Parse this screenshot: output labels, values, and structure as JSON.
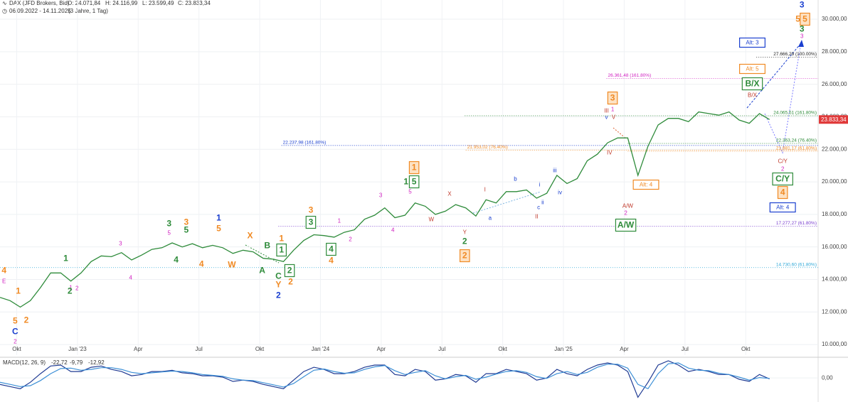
{
  "chart_data": [
    {
      "type": "line",
      "title": "DAX (JFD Brokers, Bid)",
      "ohlc": [
        "O: 24.071,84",
        "H: 24.116,99",
        "L: 23.599,49",
        "C: 23.833,34"
      ],
      "subtitle": "06.09.2022 - 14.11.2025",
      "period": "(3 Jahre, 1 Tag)",
      "series": [
        {
          "name": "DAX",
          "color": "#2e8b3a",
          "values": [
            12900,
            12700,
            12300,
            12700,
            13500,
            14400,
            14400,
            13900,
            14400,
            15100,
            15450,
            15400,
            15650,
            15200,
            15500,
            15850,
            15950,
            16250,
            16000,
            16200,
            15950,
            16100,
            15950,
            15600,
            15800,
            15700,
            15300,
            15250,
            15100,
            15800,
            16400,
            16750,
            16700,
            16600,
            16900,
            17050,
            17700,
            17950,
            18400,
            17800,
            17950,
            18700,
            18500,
            18000,
            18200,
            18600,
            18400,
            17900,
            18900,
            18700,
            19400,
            19400,
            19500,
            19000,
            19300,
            20400,
            19900,
            20200,
            21300,
            21700,
            22400,
            22700,
            22700,
            20400,
            22200,
            23500,
            23900,
            23900,
            23700,
            24300,
            24200,
            24100,
            24300,
            23800,
            23600,
            24200,
            23833.34
          ]
        }
      ],
      "xlim": [
        0,
        80.8
      ],
      "xticks": [
        {
          "value": 1.65,
          "label": "Okt"
        },
        {
          "value": 7.65,
          "label": "Jan '23"
        },
        {
          "value": 13.65,
          "label": "Apr"
        },
        {
          "value": 19.65,
          "label": "Jul"
        },
        {
          "value": 25.65,
          "label": "Okt"
        },
        {
          "value": 31.65,
          "label": "Jan '24"
        },
        {
          "value": 37.65,
          "label": "Apr"
        },
        {
          "value": 43.65,
          "label": "Jul"
        },
        {
          "value": 49.65,
          "label": "Okt"
        },
        {
          "value": 55.65,
          "label": "Jan '25"
        },
        {
          "value": 61.65,
          "label": "Apr"
        },
        {
          "value": 67.65,
          "label": "Jul"
        },
        {
          "value": 73.65,
          "label": "Okt"
        }
      ],
      "ylim": [
        9350,
        31180
      ],
      "yticks": [
        {
          "value": 10000,
          "label": "10.000,00"
        },
        {
          "value": 12000,
          "label": "12.000,00"
        },
        {
          "value": 14000,
          "label": "14.000,00"
        },
        {
          "value": 16000,
          "label": "16.000,00"
        },
        {
          "value": 18000,
          "label": "18.000,00"
        },
        {
          "value": 20000,
          "label": "20.000,00"
        },
        {
          "value": 22000,
          "label": "22.000,00"
        },
        {
          "value": 24000,
          "label": "24.000,00"
        },
        {
          "value": 26000,
          "label": "26.000,00"
        },
        {
          "value": 28000,
          "label": "28.000,00"
        },
        {
          "value": 30000,
          "label": "30.000,00"
        }
      ],
      "grid": true,
      "last_price": {
        "value": 23833.34,
        "label": "23.833,34",
        "color": "#e03a3a"
      },
      "levels": [
        {
          "value": 27666.29,
          "label": "27.666,29 (100.00%)",
          "color": "#222222",
          "start": 74.7,
          "label_at": "end"
        },
        {
          "value": 26361.48,
          "label": "26.361,48 (161.80%)",
          "color": "#d020c0",
          "start": 59.9,
          "label_at": "start"
        },
        {
          "value": 24065.51,
          "label": "24.065,51 (161.80%)",
          "color": "#2e8b3a",
          "start": 45.9,
          "label_at": "end"
        },
        {
          "value": 22237.98,
          "label": "22.237,98 (161.80%)",
          "color": "#1a3fcf",
          "start": 27.8,
          "label_at": "start"
        },
        {
          "value": 21953.02,
          "label": "21.953,02 (76.40%)",
          "color": "#f08a24",
          "start": 46.0,
          "label_at": "start"
        },
        {
          "value": 22363.24,
          "label": "22.363,24 (76.40%)",
          "color": "#2e8b3a",
          "start": 62.0,
          "label_at": "end"
        },
        {
          "value": 21881.17,
          "label": "21.881,17 (61.80%)",
          "color": "#f08a24",
          "start": 62.0,
          "label_at": "end"
        },
        {
          "value": 17277.27,
          "label": "17.277,27 (61.80%)",
          "color": "#7a3fcf",
          "start": 27.5,
          "label_at": "end"
        },
        {
          "value": 14730.6,
          "label": "14.730,60 (61.80%)",
          "color": "#2fa8d8",
          "start": 0,
          "label_at": "end"
        }
      ],
      "annotations": [
        {
          "text": "4",
          "x": 0.4,
          "y": 14546,
          "color": "#f08a24"
        },
        {
          "text": "E",
          "x": 0.4,
          "y": 13891,
          "color": "#d020c0"
        },
        {
          "text": "1",
          "x": 1.8,
          "y": 13279,
          "color": "#f08a24"
        },
        {
          "text": "2",
          "x": 2.6,
          "y": 11489,
          "color": "#f08a24"
        },
        {
          "text": "5",
          "x": 1.5,
          "y": 11446,
          "color": "#f08a24"
        },
        {
          "text": "C",
          "x": 1.5,
          "y": 10791,
          "color": "#1a3fcf"
        },
        {
          "text": "2",
          "x": 1.5,
          "y": 10180,
          "color": "#d020c0"
        },
        {
          "text": "1",
          "x": 6.5,
          "y": 15288,
          "color": "#2e8b3a"
        },
        {
          "text": "1",
          "x": 7.0,
          "y": 13498,
          "color": "#d020c0"
        },
        {
          "text": "2",
          "x": 6.9,
          "y": 13279,
          "color": "#2e8b3a"
        },
        {
          "text": "2",
          "x": 7.6,
          "y": 13454,
          "color": "#d020c0"
        },
        {
          "text": "3",
          "x": 11.9,
          "y": 16205,
          "color": "#d020c0"
        },
        {
          "text": "4",
          "x": 12.9,
          "y": 14109,
          "color": "#d020c0"
        },
        {
          "text": "3",
          "x": 16.7,
          "y": 17427,
          "color": "#2e8b3a"
        },
        {
          "text": "5",
          "x": 16.7,
          "y": 16860,
          "color": "#d020c0"
        },
        {
          "text": "3",
          "x": 18.4,
          "y": 17514,
          "color": "#f08a24"
        },
        {
          "text": "5",
          "x": 18.4,
          "y": 17034,
          "color": "#2e8b3a"
        },
        {
          "text": "4",
          "x": 17.4,
          "y": 15200,
          "color": "#2e8b3a"
        },
        {
          "text": "4",
          "x": 19.9,
          "y": 14938,
          "color": "#f08a24"
        },
        {
          "text": "1",
          "x": 21.6,
          "y": 17776,
          "color": "#1a3fcf"
        },
        {
          "text": "5",
          "x": 21.6,
          "y": 17121,
          "color": "#f08a24"
        },
        {
          "text": "X",
          "x": 24.7,
          "y": 16685,
          "color": "#f08a24"
        },
        {
          "text": "B",
          "x": 26.4,
          "y": 16074,
          "color": "#2e8b3a"
        },
        {
          "text": "W",
          "x": 22.9,
          "y": 14895,
          "color": "#f08a24"
        },
        {
          "text": "A",
          "x": 25.9,
          "y": 14546,
          "color": "#2e8b3a"
        },
        {
          "text": "C",
          "x": 27.5,
          "y": 14196,
          "color": "#2e8b3a"
        },
        {
          "text": "Y",
          "x": 27.5,
          "y": 13672,
          "color": "#f08a24"
        },
        {
          "text": "2",
          "x": 27.5,
          "y": 13017,
          "color": "#1a3fcf"
        },
        {
          "text": "1",
          "x": 27.8,
          "y": 16510,
          "color": "#f08a24"
        },
        {
          "text": "1",
          "x": 27.8,
          "y": 15812,
          "color": "#2e8b3a",
          "box": true
        },
        {
          "text": "2",
          "x": 28.6,
          "y": 14546,
          "color": "#2e8b3a",
          "box": true
        },
        {
          "text": "2",
          "x": 28.7,
          "y": 13847,
          "color": "#f08a24"
        },
        {
          "text": "3",
          "x": 30.7,
          "y": 18257,
          "color": "#f08a24"
        },
        {
          "text": "3",
          "x": 30.7,
          "y": 17514,
          "color": "#2e8b3a",
          "box": true
        },
        {
          "text": "1",
          "x": 33.5,
          "y": 17602,
          "color": "#d020c0"
        },
        {
          "text": "2",
          "x": 34.6,
          "y": 16467,
          "color": "#d020c0"
        },
        {
          "text": "4",
          "x": 32.7,
          "y": 15855,
          "color": "#2e8b3a",
          "box": true
        },
        {
          "text": "4",
          "x": 32.7,
          "y": 15157,
          "color": "#f08a24"
        },
        {
          "text": "3",
          "x": 37.6,
          "y": 19174,
          "color": "#d020c0"
        },
        {
          "text": "4",
          "x": 38.8,
          "y": 17034,
          "color": "#d020c0"
        },
        {
          "text": "1",
          "x": 40.1,
          "y": 20003,
          "color": "#2e8b3a"
        },
        {
          "text": "5",
          "x": 40.9,
          "y": 20003,
          "color": "#2e8b3a",
          "box": true
        },
        {
          "text": "5",
          "x": 40.5,
          "y": 19392,
          "color": "#d020c0"
        },
        {
          "text": "1",
          "x": 40.9,
          "y": 20876,
          "color": "#f08a24",
          "box": true
        },
        {
          "text": "W",
          "x": 42.6,
          "y": 17689,
          "color": "#c0392b"
        },
        {
          "text": "X",
          "x": 44.4,
          "y": 19261,
          "color": "#c0392b"
        },
        {
          "text": "Y",
          "x": 45.9,
          "y": 16903,
          "color": "#c0392b"
        },
        {
          "text": "2",
          "x": 45.9,
          "y": 16336,
          "color": "#2e8b3a"
        },
        {
          "text": "2",
          "x": 45.9,
          "y": 15462,
          "color": "#f08a24",
          "box": true
        },
        {
          "text": "I",
          "x": 47.9,
          "y": 19523,
          "color": "#c0392b"
        },
        {
          "text": "a",
          "x": 48.4,
          "y": 17776,
          "color": "#1a3fcf"
        },
        {
          "text": "b",
          "x": 50.9,
          "y": 20178,
          "color": "#1a3fcf"
        },
        {
          "text": "c",
          "x": 53.2,
          "y": 18431,
          "color": "#1a3fcf"
        },
        {
          "text": "i",
          "x": 53.3,
          "y": 19828,
          "color": "#1a3fcf"
        },
        {
          "text": "ii",
          "x": 53.6,
          "y": 18737,
          "color": "#1a3fcf"
        },
        {
          "text": "II",
          "x": 53.0,
          "y": 17864,
          "color": "#c0392b"
        },
        {
          "text": "iii",
          "x": 54.8,
          "y": 20702,
          "color": "#1a3fcf"
        },
        {
          "text": "iv",
          "x": 55.3,
          "y": 19348,
          "color": "#1a3fcf"
        },
        {
          "text": "v",
          "x": 59.9,
          "y": 23976,
          "color": "#1a3fcf"
        },
        {
          "text": "3",
          "x": 60.5,
          "y": 25155,
          "color": "#f08a24",
          "box": true
        },
        {
          "text": "1",
          "x": 60.5,
          "y": 24456,
          "color": "#d020c0"
        },
        {
          "text": "III",
          "x": 59.9,
          "y": 24369,
          "color": "#c0392b"
        },
        {
          "text": "V",
          "x": 60.6,
          "y": 23976,
          "color": "#c0392b"
        },
        {
          "text": "IV",
          "x": 60.2,
          "y": 21793,
          "color": "#c0392b"
        },
        {
          "text": "A/W",
          "x": 62.0,
          "y": 18519,
          "color": "#c0392b"
        },
        {
          "text": "2",
          "x": 61.8,
          "y": 18082,
          "color": "#d020c0"
        },
        {
          "text": "A/W",
          "x": 61.8,
          "y": 17340,
          "color": "#2e8b3a",
          "box": true
        },
        {
          "text": "Alt: 4",
          "x": 63.8,
          "y": 19828,
          "color": "#f08a24",
          "box": true
        },
        {
          "text": "Alt: 3",
          "x": 74.3,
          "y": 28560,
          "color": "#1a3fcf",
          "box": true
        },
        {
          "text": "Alt: 5",
          "x": 74.3,
          "y": 26945,
          "color": "#f08a24",
          "box": true
        },
        {
          "text": "B/X",
          "x": 74.3,
          "y": 26028,
          "color": "#2e8b3a",
          "box": true
        },
        {
          "text": "B/X",
          "x": 74.3,
          "y": 25330,
          "color": "#c0392b"
        },
        {
          "text": "C/Y",
          "x": 77.3,
          "y": 21269,
          "color": "#c0392b"
        },
        {
          "text": "2",
          "x": 77.3,
          "y": 20789,
          "color": "#d020c0"
        },
        {
          "text": "C/Y",
          "x": 77.3,
          "y": 20178,
          "color": "#2e8b3a",
          "box": true
        },
        {
          "text": "4",
          "x": 77.3,
          "y": 19348,
          "color": "#f08a24",
          "box": true
        },
        {
          "text": "Alt: 4",
          "x": 77.3,
          "y": 18431,
          "color": "#1a3fcf",
          "box": true
        },
        {
          "text": "3",
          "x": 79.2,
          "y": 30874,
          "color": "#1a3fcf"
        },
        {
          "text": "5",
          "x": 78.8,
          "y": 30001,
          "color": "#f08a24"
        },
        {
          "text": "5",
          "x": 79.5,
          "y": 30001,
          "color": "#f08a24",
          "box": true
        },
        {
          "text": "3",
          "x": 79.2,
          "y": 29390,
          "color": "#2e8b3a"
        },
        {
          "text": "3",
          "x": 79.2,
          "y": 28953,
          "color": "#d020c0"
        }
      ]
    },
    {
      "type": "line",
      "title": "MACD(12, 26, 9)",
      "readouts": [
        {
          "label": "-22,72",
          "color": "#1f3a93"
        },
        {
          "label": "-9,79",
          "color": "#3b8fd6"
        },
        {
          "label": "-12,92",
          "color": "#8aa4bd"
        }
      ],
      "series": [
        {
          "name": "MACD",
          "color": "#1f3a93",
          "values": [
            -150,
            -200,
            -250,
            -100,
            100,
            280,
            300,
            150,
            150,
            250,
            280,
            200,
            150,
            50,
            80,
            150,
            150,
            180,
            120,
            100,
            50,
            50,
            20,
            -80,
            -50,
            -80,
            -150,
            -200,
            -250,
            -50,
            150,
            250,
            200,
            100,
            100,
            150,
            250,
            300,
            300,
            80,
            50,
            200,
            150,
            -50,
            -20,
            80,
            50,
            -100,
            100,
            100,
            200,
            150,
            100,
            -50,
            0,
            200,
            100,
            50,
            200,
            300,
            350,
            300,
            150,
            -450,
            -100,
            300,
            400,
            300,
            150,
            200,
            150,
            80,
            80,
            -30,
            -80,
            80,
            -22.72
          ]
        },
        {
          "name": "Signal",
          "color": "#3b8fd6",
          "values": [
            -100,
            -150,
            -200,
            -180,
            -60,
            100,
            220,
            230,
            180,
            200,
            240,
            240,
            200,
            130,
            100,
            120,
            140,
            160,
            150,
            120,
            80,
            60,
            40,
            -20,
            -50,
            -60,
            -110,
            -160,
            -210,
            -130,
            30,
            180,
            210,
            150,
            110,
            120,
            200,
            260,
            290,
            170,
            80,
            130,
            170,
            50,
            -20,
            30,
            60,
            -30,
            20,
            90,
            150,
            170,
            130,
            30,
            -10,
            100,
            150,
            80,
            130,
            250,
            320,
            320,
            230,
            -150,
            -250,
            100,
            330,
            350,
            230,
            180,
            170,
            110,
            80,
            20,
            -50,
            10,
            -9.79
          ]
        }
      ],
      "xlim": [
        0,
        80.8
      ],
      "ylim": [
        -560,
        400
      ],
      "yticks": [
        {
          "value": 0,
          "label": "0,00"
        }
      ]
    }
  ]
}
